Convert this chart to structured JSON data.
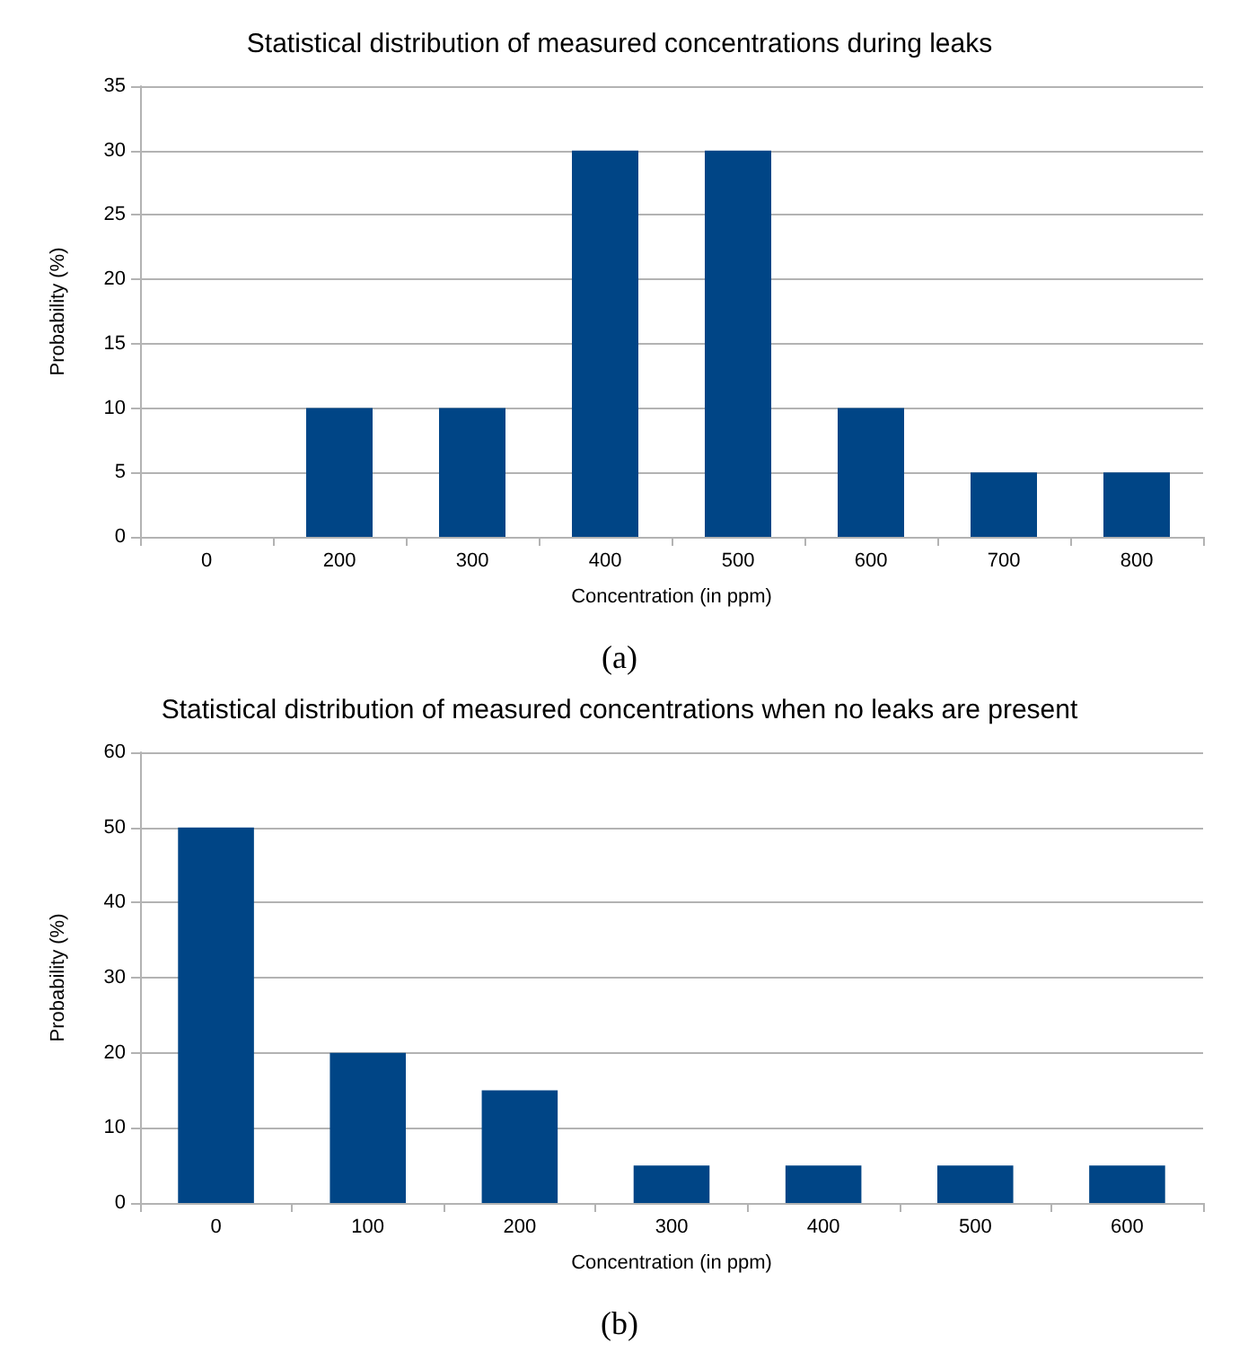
{
  "chart_data": [
    {
      "type": "bar",
      "title": "Statistical distribution of measured concentrations during leaks",
      "xlabel": "Concentration (in ppm)",
      "ylabel": "Probability (%)",
      "categories": [
        "0",
        "200",
        "300",
        "400",
        "500",
        "600",
        "700",
        "800"
      ],
      "values": [
        0,
        10,
        10,
        30,
        30,
        10,
        5,
        5
      ],
      "color": "#004586",
      "ylim": [
        0,
        35
      ],
      "yticks": [
        0,
        5,
        10,
        15,
        20,
        25,
        30,
        35
      ],
      "grid": "y",
      "annotations": [
        "(a)"
      ]
    },
    {
      "type": "bar",
      "title": "Statistical distribution of measured concentrations when no leaks are present",
      "xlabel": "Concentration (in ppm)",
      "ylabel": "Probability (%)",
      "categories": [
        "0",
        "100",
        "200",
        "300",
        "400",
        "500",
        "600"
      ],
      "values": [
        50,
        20,
        15,
        5,
        5,
        5,
        5
      ],
      "color": "#004586",
      "ylim": [
        0,
        60
      ],
      "yticks": [
        0,
        10,
        20,
        30,
        40,
        50,
        60
      ],
      "grid": "y",
      "annotations": [
        "(b)"
      ]
    }
  ]
}
